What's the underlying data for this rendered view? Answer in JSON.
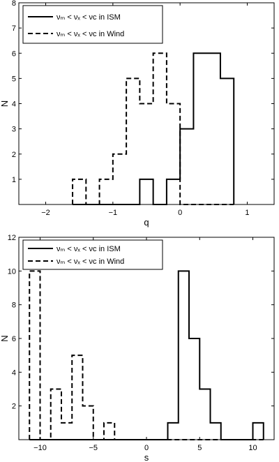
{
  "chart_data": [
    {
      "type": "histogram",
      "xlabel": "q",
      "ylabel": "N",
      "xlim": [
        -2.4,
        1.4
      ],
      "ylim": [
        0,
        8
      ],
      "xticks": [
        -2,
        -1,
        0,
        1
      ],
      "xtick_labels": [
        "−2",
        "−1",
        "0",
        "1"
      ],
      "yticks": [
        1,
        2,
        3,
        4,
        5,
        6,
        7,
        8
      ],
      "ytick_labels": [
        "1",
        "2",
        "3",
        "4",
        "5",
        "6",
        "7",
        "8"
      ],
      "bin_edges": [
        -1.6,
        -1.4,
        -1.2,
        -1.0,
        -0.8,
        -0.6,
        -0.4,
        -0.2,
        0.0,
        0.2,
        0.4,
        0.6,
        0.8
      ],
      "legend_position": "top-left",
      "series": [
        {
          "name": "νₘ < νₓ < νᴄ in ISM",
          "line_style": "solid",
          "counts": [
            0,
            0,
            0,
            0,
            0,
            1,
            0,
            1,
            3,
            6,
            6,
            5
          ]
        },
        {
          "name": "νₘ < νₓ < νᴄ in Wind",
          "line_style": "dashed",
          "counts": [
            1,
            0,
            1,
            2,
            5,
            4,
            6,
            4,
            0,
            0,
            0,
            0
          ]
        }
      ]
    },
    {
      "type": "histogram",
      "xlabel": "s",
      "ylabel": "N",
      "xlim": [
        -12,
        12
      ],
      "ylim": [
        0,
        12
      ],
      "xticks": [
        -10,
        -5,
        0,
        5,
        10
      ],
      "xtick_labels": [
        "−10",
        "−5",
        "0",
        "5",
        "10"
      ],
      "yticks": [
        2,
        4,
        6,
        8,
        10,
        12
      ],
      "ytick_labels": [
        "2",
        "4",
        "6",
        "8",
        "10",
        "12"
      ],
      "bin_edges": [
        -11,
        -10,
        -9,
        -8,
        -7,
        -6,
        -5,
        -4,
        -3,
        -2,
        -1,
        0,
        1,
        2,
        3,
        4,
        5,
        6,
        7,
        8,
        9,
        10,
        11
      ],
      "legend_position": "top-left",
      "series": [
        {
          "name": "νₘ < νₓ < νᴄ in ISM",
          "line_style": "solid",
          "counts": [
            0,
            0,
            0,
            0,
            0,
            0,
            0,
            0,
            0,
            0,
            0,
            0,
            0,
            1,
            10,
            6,
            3,
            1,
            0,
            0,
            0,
            1
          ]
        },
        {
          "name": "νₘ < νₓ < νᴄ in Wind",
          "line_style": "dashed",
          "counts": [
            10,
            0,
            3,
            1,
            5,
            2,
            0,
            1,
            0,
            0,
            0,
            0,
            0,
            0,
            0,
            0,
            0,
            0,
            0,
            0,
            0,
            0
          ]
        }
      ]
    }
  ]
}
